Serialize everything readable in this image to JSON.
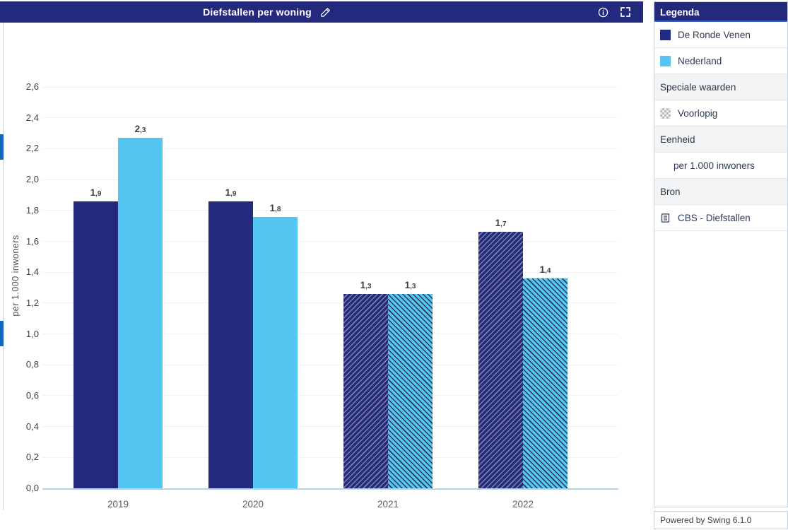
{
  "title_bar": {
    "title": "Diefstallen per woning"
  },
  "icons": {
    "edit": "pencil-icon",
    "info": "info-icon",
    "fullscreen": "fullscreen-expand-icon",
    "source": "book-icon"
  },
  "legend": {
    "header": "Legenda",
    "rows": [
      {
        "label": "De Ronde Venen",
        "swatch_color": "#242b7e"
      },
      {
        "label": "Nederland",
        "swatch_color": "#55c6f2"
      },
      {
        "label": "Speciale waarden"
      },
      {
        "label": "Voorlopig",
        "swatch": "gray-checker"
      },
      {
        "label": "Eenheid"
      },
      {
        "label": "per 1.000 inwoners"
      },
      {
        "label": "Bron"
      },
      {
        "label": "CBS - Diefstallen",
        "icon": "book-icon"
      }
    ]
  },
  "powered_by": "Powered by Swing 6.1.0",
  "colors": {
    "titlebar_navy": "#232a7d",
    "series_dark": "#242b7e",
    "series_light": "#55c6f2",
    "accent_strip_blue": "#1565c0",
    "axis_line": "#b7d5e8"
  },
  "chart_data": {
    "type": "bar",
    "title": "Diefstallen per woning",
    "xlabel": "",
    "ylabel": "per 1.000 inwoners",
    "categories": [
      "2019",
      "2020",
      "2021",
      "2022"
    ],
    "series": [
      {
        "name": "De Ronde Venen",
        "color": "#242b7e",
        "values": [
          1.86,
          1.86,
          1.26,
          1.66
        ],
        "value_labels": [
          "1,9",
          "1,9",
          "1,3",
          "1,7"
        ],
        "provisional": [
          false,
          false,
          true,
          true
        ]
      },
      {
        "name": "Nederland",
        "color": "#55c6f2",
        "values": [
          2.27,
          1.76,
          1.26,
          1.36
        ],
        "value_labels": [
          "2,3",
          "1,8",
          "1,3",
          "1,4"
        ],
        "provisional": [
          false,
          false,
          true,
          true
        ]
      }
    ],
    "ylim": [
      0,
      2.6
    ],
    "yticks": [
      "0,0",
      "0,2",
      "0,4",
      "0,6",
      "0,8",
      "1,0",
      "1,2",
      "1,4",
      "1,6",
      "1,8",
      "2,0",
      "2,2",
      "2,4",
      "2,6"
    ],
    "provisional_style": "diagonal-hatch",
    "provisional_label": "Voorlopig",
    "legend_position": "right",
    "grid": "faint horizontal lines at each tick"
  }
}
